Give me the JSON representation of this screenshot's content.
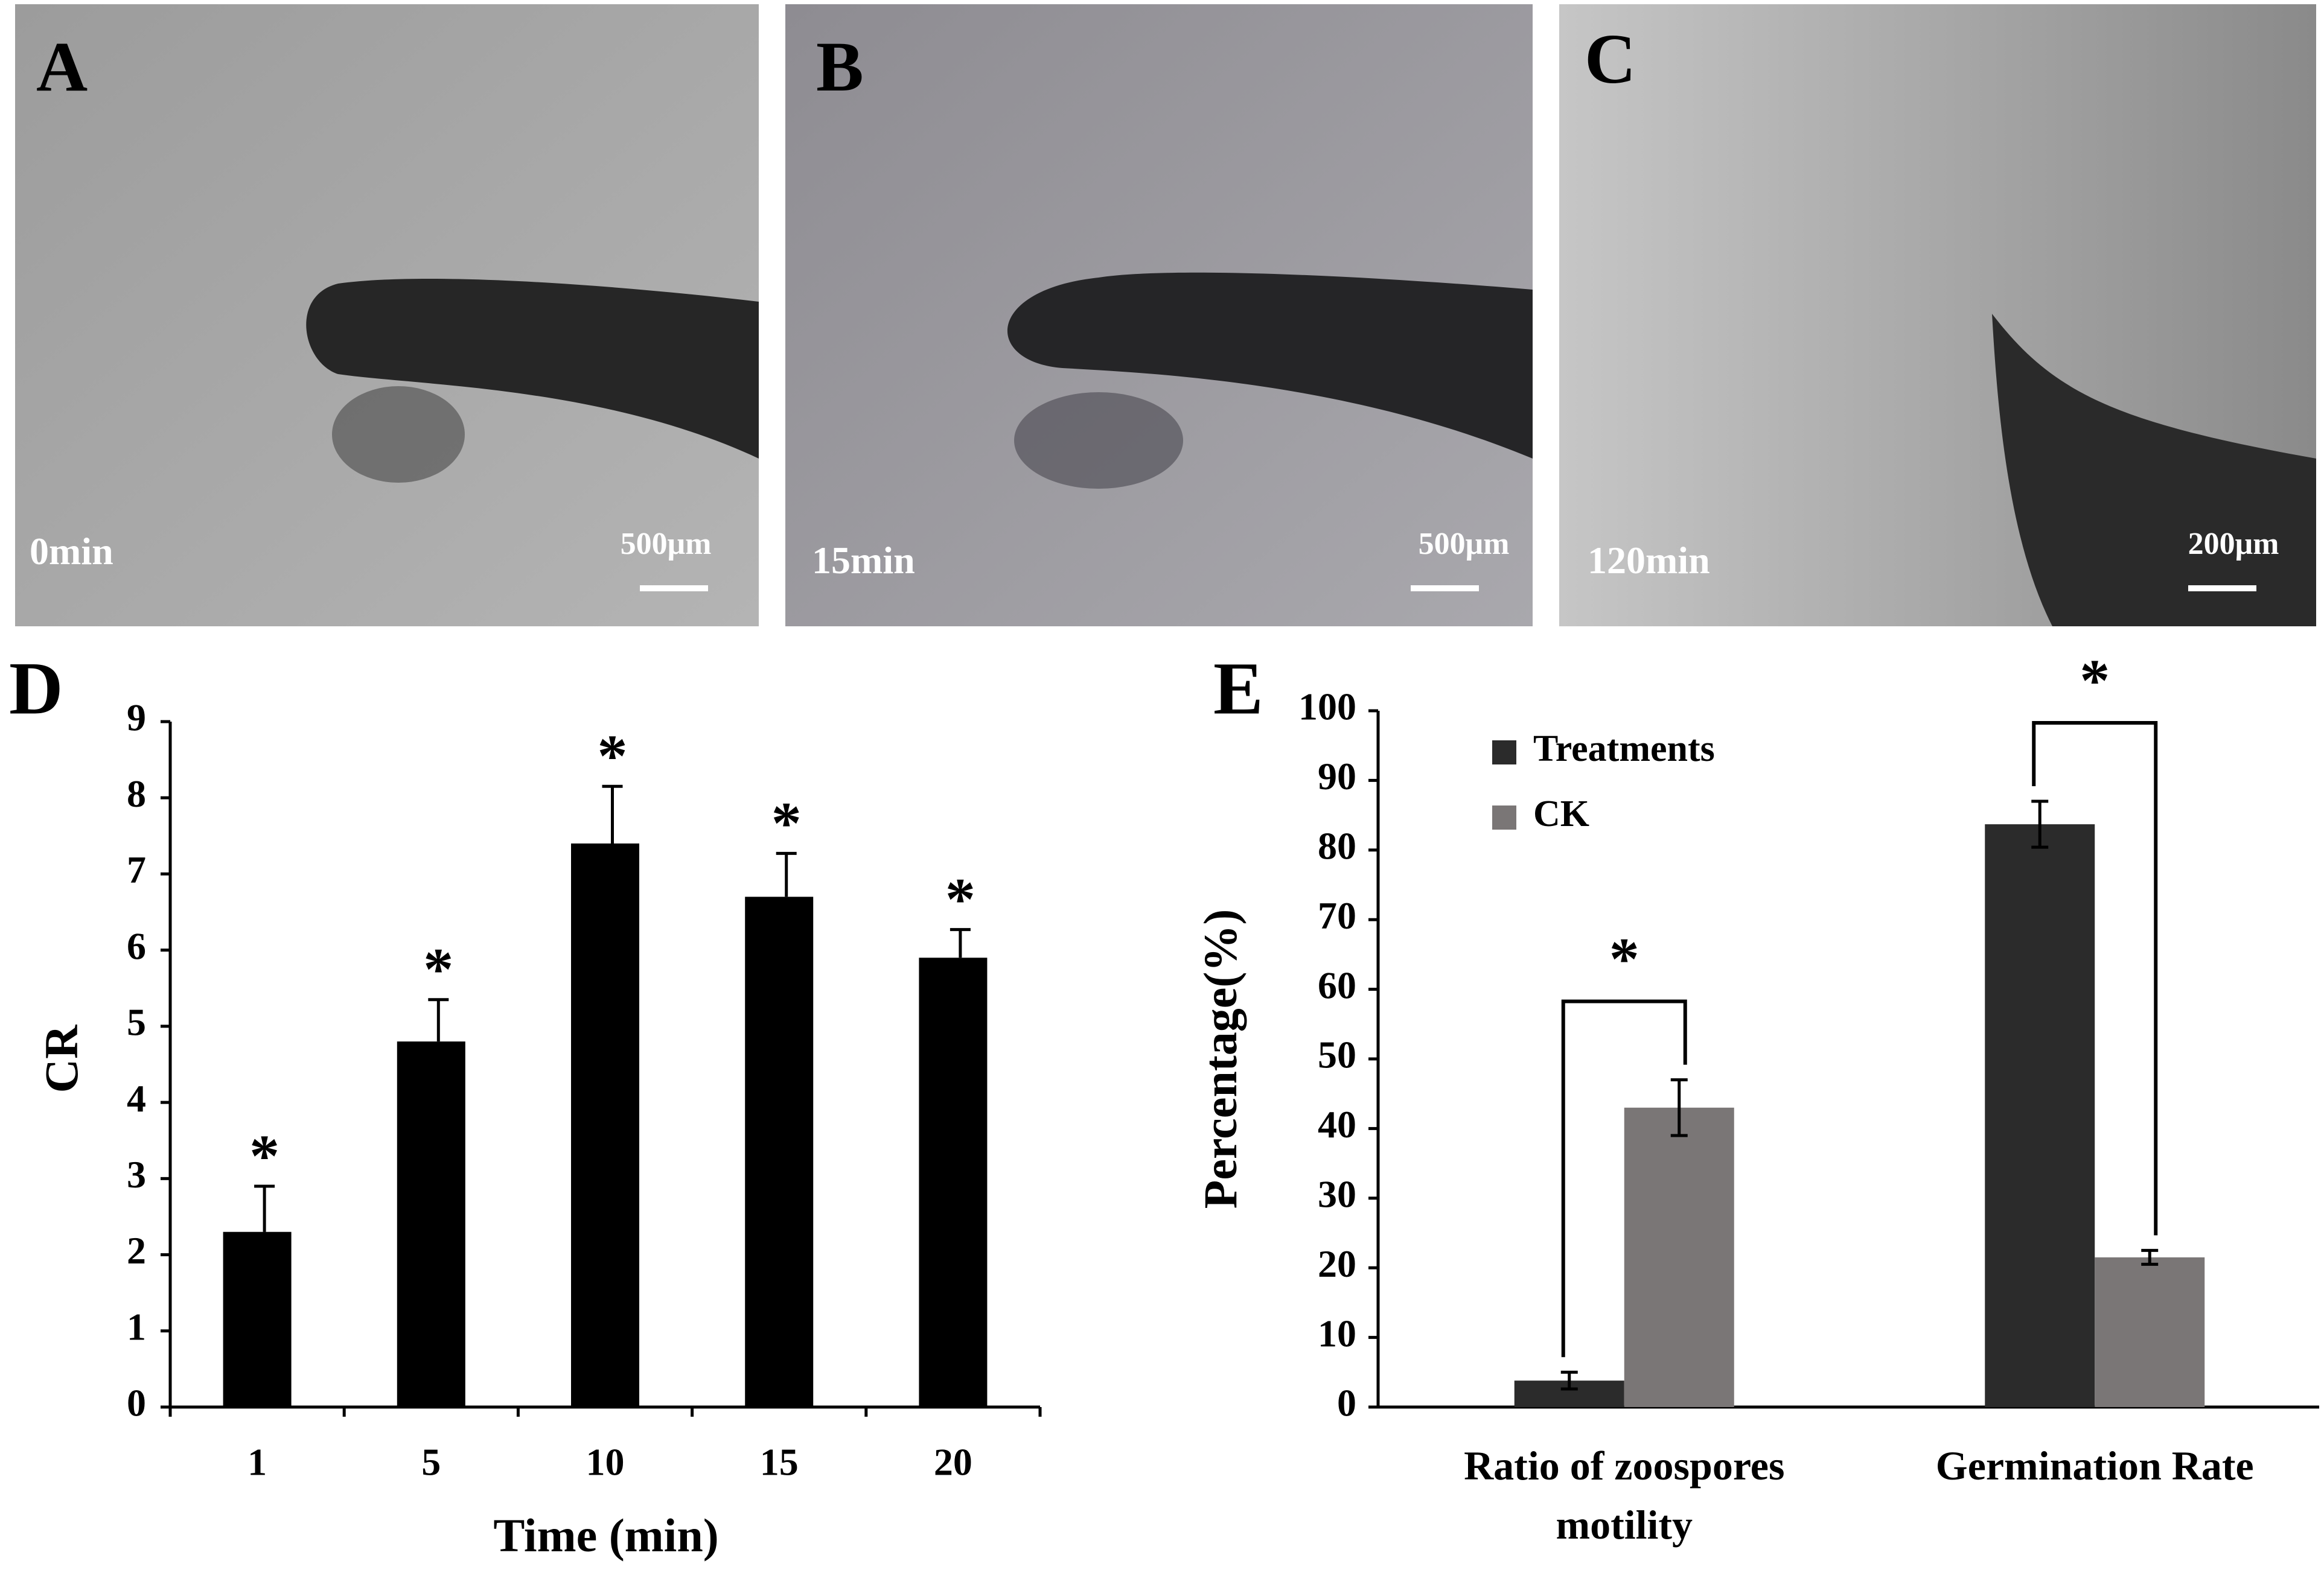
{
  "panels": [
    {
      "label": "A",
      "time": "0min",
      "scale": "500μm"
    },
    {
      "label": "B",
      "time": "15min",
      "scale": "500μm"
    },
    {
      "label": "C",
      "time": "120min",
      "scale": "200μm"
    }
  ],
  "chart_data": [
    {
      "type": "bar",
      "panel_label": "D",
      "x_label": "Time (min)",
      "y_label": "CR",
      "categories": [
        "1",
        "5",
        "10",
        "15",
        "20"
      ],
      "values": [
        2.3,
        4.8,
        7.4,
        6.7,
        5.9
      ],
      "errors": [
        0.6,
        0.55,
        0.75,
        0.57,
        0.37
      ],
      "significance": [
        "*",
        "*",
        "*",
        "*",
        "*"
      ],
      "color": "#000000",
      "ylim": [
        0,
        9
      ],
      "yticks": [
        0,
        1,
        2,
        3,
        4,
        5,
        6,
        7,
        8,
        9
      ]
    },
    {
      "type": "grouped_bar",
      "panel_label": "E",
      "y_label": "Percentage(%)",
      "categories": [
        "Ratio of zoospores motility",
        "Germination Rate"
      ],
      "series": [
        {
          "name": "Treatments",
          "color": "#2b2b2b",
          "values": [
            3.8,
            83.7
          ],
          "errors": [
            1.2,
            3.3
          ]
        },
        {
          "name": "CK",
          "color": "#7a7676",
          "values": [
            43,
            21.5
          ],
          "errors": [
            4,
            1
          ]
        }
      ],
      "significance": [
        "*",
        "*"
      ],
      "legend": "upper left",
      "ylim": [
        0,
        100
      ],
      "yticks": [
        0,
        10,
        20,
        30,
        40,
        50,
        60,
        70,
        80,
        90,
        100
      ]
    }
  ]
}
